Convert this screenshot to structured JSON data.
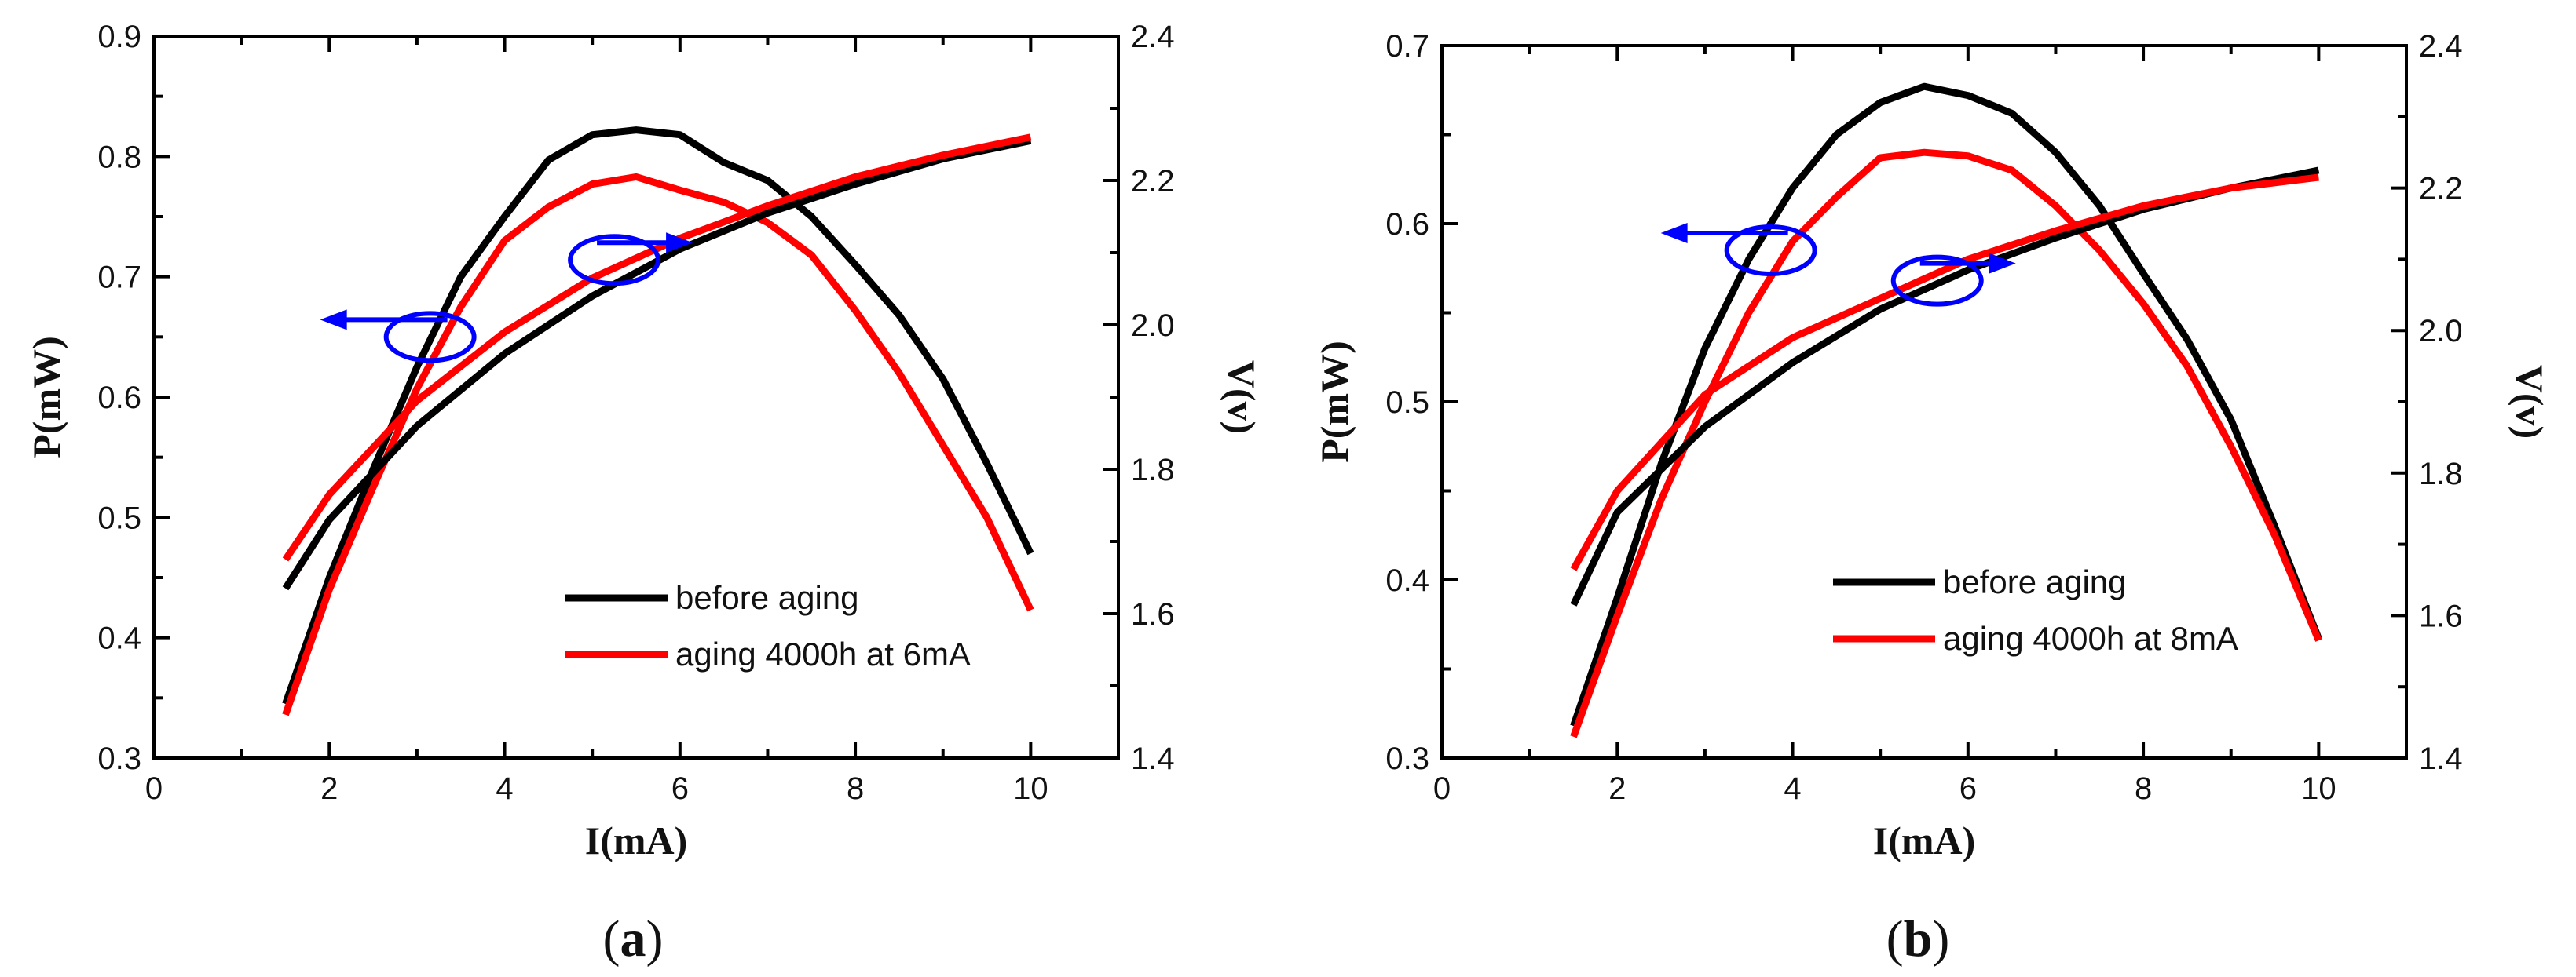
{
  "chart_data": [
    {
      "type": "line",
      "panel_label": "a",
      "xlabel": "I(mA)",
      "ylabel_left": "P(mW)",
      "ylabel_right": "V(v)",
      "xlim": [
        0,
        11
      ],
      "x_ticks": [
        "0",
        "2",
        "4",
        "6",
        "8",
        "10"
      ],
      "ylim_left": [
        0.3,
        0.9
      ],
      "y_left_ticks": [
        "0.3",
        "0.4",
        "0.5",
        "0.6",
        "0.7",
        "0.8",
        "0.9"
      ],
      "ylim_right": [
        1.4,
        2.4
      ],
      "y_right_ticks": [
        "1.4",
        "1.6",
        "1.8",
        "2.0",
        "2.2",
        "2.4"
      ],
      "colors": {
        "before": "#000000",
        "after": "#ff0000",
        "arrow": "#0000ff"
      },
      "legend": [
        "before aging",
        "aging 4000h at 6mA"
      ],
      "legend_position": "bottom-right",
      "annotations": [
        {
          "type": "ellipse-arrow",
          "axis": "left",
          "at": [
            3.15,
            0.65
          ],
          "direction": "left"
        },
        {
          "type": "ellipse-arrow",
          "axis": "right",
          "at": [
            5.25,
            2.09
          ],
          "direction": "right"
        }
      ],
      "series": [
        {
          "name": "before aging",
          "quantity": "power",
          "axis": "left",
          "color_key": "before",
          "x": [
            1.5,
            2,
            2.5,
            3,
            3.5,
            4,
            4.5,
            5,
            5.5,
            6,
            6.5,
            7,
            7.5,
            8,
            8.5,
            9,
            9.5,
            10
          ],
          "y": [
            0.345,
            0.45,
            0.54,
            0.625,
            0.7,
            0.75,
            0.797,
            0.818,
            0.822,
            0.818,
            0.795,
            0.78,
            0.75,
            0.71,
            0.668,
            0.615,
            0.545,
            0.47
          ]
        },
        {
          "name": "aging 4000h at 6mA",
          "quantity": "power",
          "axis": "left",
          "color_key": "after",
          "x": [
            1.5,
            2,
            2.5,
            3,
            3.5,
            4,
            4.5,
            5,
            5.5,
            6,
            6.5,
            7,
            7.5,
            8,
            8.5,
            9,
            9.5,
            10
          ],
          "y": [
            0.336,
            0.44,
            0.525,
            0.607,
            0.675,
            0.73,
            0.758,
            0.777,
            0.783,
            0.772,
            0.762,
            0.745,
            0.718,
            0.672,
            0.62,
            0.56,
            0.5,
            0.423
          ]
        },
        {
          "name": "before aging",
          "quantity": "voltage",
          "axis": "right",
          "color_key": "before",
          "x": [
            1.5,
            2,
            3,
            4,
            5,
            6,
            7,
            8,
            9,
            10
          ],
          "y": [
            1.635,
            1.73,
            1.86,
            1.96,
            2.04,
            2.105,
            2.155,
            2.195,
            2.23,
            2.255
          ]
        },
        {
          "name": "aging 4000h at 6mA",
          "quantity": "voltage",
          "axis": "right",
          "color_key": "after",
          "x": [
            1.5,
            2,
            3,
            4,
            5,
            6,
            7,
            8,
            9,
            10
          ],
          "y": [
            1.675,
            1.765,
            1.895,
            1.99,
            2.065,
            2.12,
            2.165,
            2.205,
            2.235,
            2.26
          ]
        }
      ]
    },
    {
      "type": "line",
      "panel_label": "b",
      "xlabel": "I(mA)",
      "ylabel_left": "P(mW)",
      "ylabel_right": "V(v)",
      "xlim": [
        0,
        11
      ],
      "x_ticks": [
        "0",
        "2",
        "4",
        "6",
        "8",
        "10"
      ],
      "ylim_left": [
        0.3,
        0.7
      ],
      "y_left_ticks": [
        "0.3",
        "0.4",
        "0.5",
        "0.6",
        "0.7"
      ],
      "ylim_right": [
        1.4,
        2.4
      ],
      "y_right_ticks": [
        "1.4",
        "1.6",
        "1.8",
        "2.0",
        "2.2",
        "2.4"
      ],
      "colors": {
        "before": "#000000",
        "after": "#ff0000",
        "arrow": "#0000ff"
      },
      "legend": [
        "before aging",
        "aging 4000h at 8mA"
      ],
      "legend_position": "bottom-right",
      "annotations": [
        {
          "type": "ellipse-arrow",
          "axis": "left",
          "at": [
            3.75,
            0.585
          ],
          "direction": "left"
        },
        {
          "type": "ellipse-arrow",
          "axis": "right",
          "at": [
            5.65,
            2.07
          ],
          "direction": "right"
        }
      ],
      "series": [
        {
          "name": "before aging",
          "quantity": "power",
          "axis": "left",
          "color_key": "before",
          "x": [
            1.5,
            2,
            2.5,
            3,
            3.5,
            4,
            4.5,
            5,
            5.5,
            6,
            6.5,
            7,
            7.5,
            8,
            8.5,
            9,
            9.5,
            10
          ],
          "y": [
            0.318,
            0.39,
            0.465,
            0.53,
            0.58,
            0.62,
            0.65,
            0.668,
            0.677,
            0.672,
            0.662,
            0.64,
            0.61,
            0.572,
            0.535,
            0.49,
            0.43,
            0.367
          ]
        },
        {
          "name": "aging 4000h at 8mA",
          "quantity": "power",
          "axis": "left",
          "color_key": "after",
          "x": [
            1.5,
            2,
            2.5,
            3,
            3.5,
            4,
            4.5,
            5,
            5.5,
            6,
            6.5,
            7,
            7.5,
            8,
            8.5,
            9,
            9.5,
            10
          ],
          "y": [
            0.312,
            0.38,
            0.445,
            0.5,
            0.55,
            0.59,
            0.615,
            0.637,
            0.64,
            0.638,
            0.63,
            0.61,
            0.585,
            0.555,
            0.52,
            0.475,
            0.425,
            0.366
          ]
        },
        {
          "name": "before aging",
          "quantity": "voltage",
          "axis": "right",
          "color_key": "before",
          "x": [
            1.5,
            2,
            3,
            4,
            5,
            6,
            7,
            8,
            9,
            10
          ],
          "y": [
            1.615,
            1.745,
            1.865,
            1.955,
            2.03,
            2.085,
            2.13,
            2.17,
            2.2,
            2.225
          ]
        },
        {
          "name": "aging 4000h at 8mA",
          "quantity": "voltage",
          "axis": "right",
          "color_key": "after",
          "x": [
            1.5,
            2,
            3,
            4,
            5,
            6,
            7,
            8,
            9,
            10
          ],
          "y": [
            1.665,
            1.775,
            1.91,
            1.99,
            2.045,
            2.1,
            2.14,
            2.175,
            2.2,
            2.215
          ]
        }
      ]
    }
  ]
}
